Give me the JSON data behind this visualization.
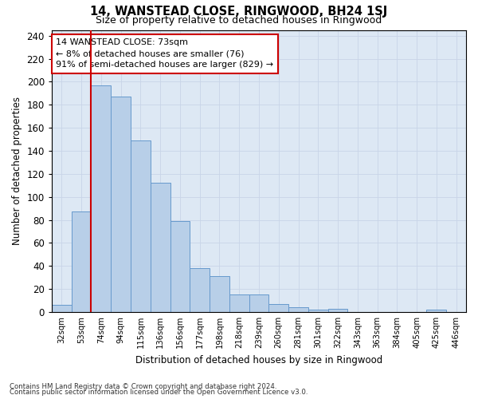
{
  "title": "14, WANSTEAD CLOSE, RINGWOOD, BH24 1SJ",
  "subtitle": "Size of property relative to detached houses in Ringwood",
  "xlabel": "Distribution of detached houses by size in Ringwood",
  "ylabel": "Number of detached properties",
  "bar_color": "#b8cfe8",
  "bar_edge_color": "#6699cc",
  "grid_color": "#c8d4e8",
  "bg_color": "#dde8f4",
  "categories": [
    "32sqm",
    "53sqm",
    "74sqm",
    "94sqm",
    "115sqm",
    "136sqm",
    "156sqm",
    "177sqm",
    "198sqm",
    "218sqm",
    "239sqm",
    "260sqm",
    "281sqm",
    "301sqm",
    "322sqm",
    "343sqm",
    "363sqm",
    "384sqm",
    "405sqm",
    "425sqm",
    "446sqm"
  ],
  "values": [
    6,
    87,
    197,
    187,
    149,
    112,
    79,
    38,
    31,
    15,
    15,
    7,
    4,
    2,
    3,
    0,
    0,
    0,
    0,
    2,
    0
  ],
  "ylim": [
    0,
    245
  ],
  "yticks": [
    0,
    20,
    40,
    60,
    80,
    100,
    120,
    140,
    160,
    180,
    200,
    220,
    240
  ],
  "vline_bin_index": 2,
  "annotation_title": "14 WANSTEAD CLOSE: 73sqm",
  "annotation_line1": "← 8% of detached houses are smaller (76)",
  "annotation_line2": "91% of semi-detached houses are larger (829) →",
  "annotation_box_facecolor": "white",
  "annotation_box_edgecolor": "#cc0000",
  "vline_color": "#cc0000",
  "footer_line1": "Contains HM Land Registry data © Crown copyright and database right 2024.",
  "footer_line2": "Contains public sector information licensed under the Open Government Licence v3.0."
}
